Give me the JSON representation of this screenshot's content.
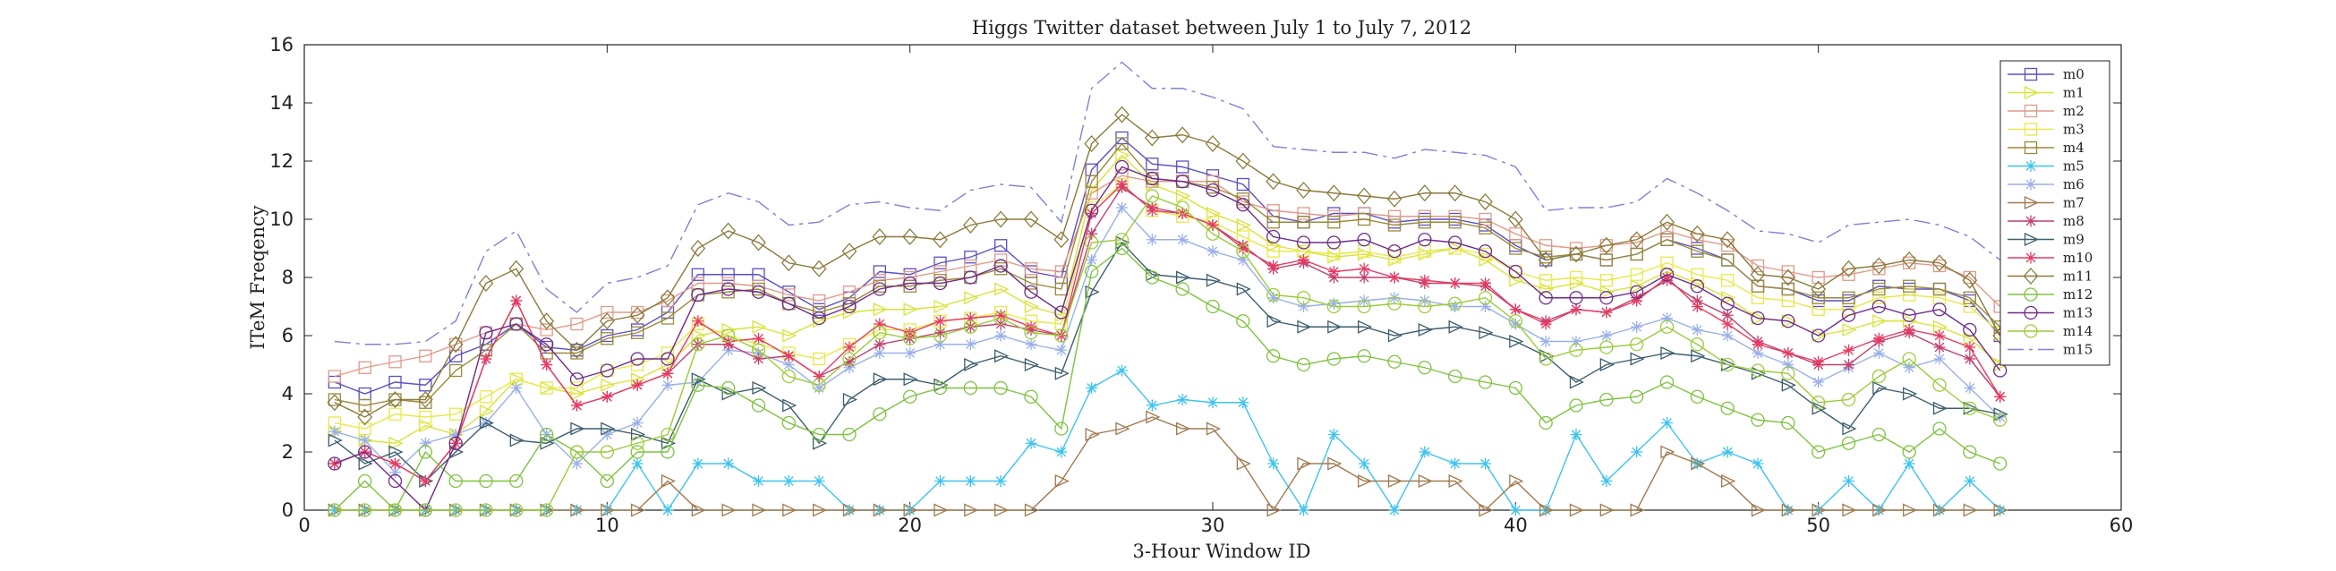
{
  "chart_data": {
    "type": "line",
    "title": "Higgs Twitter dataset between July 1 to July 7, 2012",
    "xlabel": "3-Hour Window ID",
    "ylabel": "ITeM Freqency",
    "xlim": [
      0,
      60
    ],
    "ylim": [
      0,
      16
    ],
    "xticks": [
      0,
      10,
      20,
      30,
      40,
      50,
      60
    ],
    "yticks": [
      0,
      2,
      4,
      6,
      8,
      10,
      12,
      14,
      16
    ],
    "grid": false,
    "legend_position": "top-right",
    "x": [
      1,
      2,
      3,
      4,
      5,
      6,
      7,
      8,
      9,
      10,
      11,
      12,
      13,
      14,
      15,
      16,
      17,
      18,
      19,
      20,
      21,
      22,
      23,
      24,
      25,
      26,
      27,
      28,
      29,
      30,
      31,
      32,
      33,
      34,
      35,
      36,
      37,
      38,
      39,
      40,
      41,
      42,
      43,
      44,
      45,
      46,
      47,
      48,
      49,
      50,
      51,
      52,
      53,
      54,
      55,
      56
    ],
    "series": [
      {
        "name": "m0",
        "color": "#5b4fc4",
        "marker": "square",
        "dash": "",
        "values": [
          4.4,
          4.0,
          4.4,
          4.3,
          5.3,
          5.7,
          6.4,
          5.6,
          5.5,
          6.0,
          6.2,
          6.8,
          8.1,
          8.1,
          8.1,
          7.5,
          6.9,
          7.3,
          8.2,
          8.1,
          8.5,
          8.7,
          9.1,
          8.2,
          8.0,
          11.7,
          12.8,
          11.9,
          11.8,
          11.5,
          11.2,
          10.1,
          9.9,
          10.2,
          10.2,
          9.9,
          10.0,
          10.0,
          9.8,
          9.1,
          8.6,
          8.8,
          8.6,
          8.8,
          9.3,
          9.0,
          8.6,
          7.7,
          7.6,
          7.2,
          7.2,
          7.7,
          7.6,
          7.6,
          7.2,
          6.0
        ]
      },
      {
        "name": "m1",
        "color": "#d8e33a",
        "marker": "triangle-right",
        "dash": "",
        "values": [
          2.7,
          2.4,
          2.3,
          2.9,
          2.6,
          3.4,
          4.5,
          4.2,
          4.0,
          4.3,
          4.5,
          5.0,
          6.0,
          6.2,
          6.3,
          6.0,
          6.5,
          6.8,
          6.9,
          6.9,
          7.0,
          7.3,
          7.6,
          7.0,
          6.7,
          11.0,
          12.2,
          11.2,
          10.8,
          10.2,
          9.8,
          9.1,
          8.9,
          8.7,
          8.8,
          8.6,
          8.8,
          9.0,
          8.6,
          7.9,
          7.6,
          7.8,
          7.5,
          7.7,
          8.2,
          7.8,
          7.3,
          6.6,
          6.5,
          6.0,
          6.2,
          6.5,
          6.5,
          6.3,
          5.9,
          5.0
        ]
      },
      {
        "name": "m2",
        "color": "#e09a8a",
        "marker": "square",
        "dash": "",
        "values": [
          4.6,
          4.9,
          5.1,
          5.3,
          5.7,
          6.1,
          6.4,
          6.2,
          6.4,
          6.8,
          6.8,
          7.2,
          7.8,
          7.8,
          7.7,
          7.4,
          7.2,
          7.5,
          7.9,
          8.0,
          8.2,
          8.4,
          8.6,
          8.3,
          8.2,
          10.9,
          11.5,
          11.3,
          11.3,
          11.3,
          10.6,
          10.3,
          10.2,
          10.1,
          10.2,
          10.1,
          10.1,
          10.1,
          10.0,
          9.5,
          9.1,
          9.0,
          9.1,
          9.2,
          9.6,
          9.3,
          9.1,
          8.4,
          8.2,
          8.0,
          8.1,
          8.3,
          8.5,
          8.4,
          8.0,
          7.0
        ]
      },
      {
        "name": "m3",
        "color": "#e8e84a",
        "marker": "square",
        "dash": "",
        "values": [
          3.0,
          2.8,
          3.3,
          3.2,
          3.3,
          3.9,
          4.5,
          4.2,
          4.2,
          4.8,
          5.0,
          5.4,
          6.4,
          6.0,
          5.7,
          5.4,
          5.2,
          5.7,
          6.2,
          6.2,
          6.5,
          6.6,
          6.8,
          6.5,
          6.4,
          10.4,
          11.2,
          10.3,
          10.1,
          9.9,
          9.4,
          8.9,
          8.9,
          8.8,
          8.9,
          8.7,
          8.9,
          9.0,
          8.8,
          8.2,
          7.9,
          8.0,
          7.9,
          8.1,
          8.5,
          8.1,
          7.9,
          7.3,
          7.2,
          6.9,
          6.9,
          7.3,
          7.4,
          7.3,
          7.0,
          6.1
        ]
      },
      {
        "name": "m4",
        "color": "#9a8a3a",
        "marker": "square",
        "dash": "",
        "values": [
          3.8,
          3.6,
          3.8,
          3.7,
          4.8,
          5.5,
          6.4,
          5.4,
          5.4,
          5.9,
          6.1,
          6.6,
          7.4,
          7.5,
          7.6,
          7.1,
          6.8,
          7.1,
          7.7,
          7.7,
          7.9,
          8.0,
          8.3,
          7.8,
          7.6,
          11.3,
          12.6,
          11.4,
          11.3,
          11.1,
          10.7,
          9.9,
          9.9,
          9.9,
          10.0,
          9.8,
          9.9,
          9.9,
          9.7,
          9.0,
          8.7,
          8.8,
          8.6,
          8.8,
          9.3,
          8.9,
          8.6,
          7.7,
          7.6,
          7.3,
          7.3,
          7.6,
          7.7,
          7.6,
          7.3,
          6.3
        ]
      },
      {
        "name": "m5",
        "color": "#3ec3f0",
        "marker": "star",
        "dash": "",
        "values": [
          0,
          0,
          0,
          0,
          0,
          0,
          0,
          0,
          0,
          0,
          1.6,
          0,
          1.6,
          1.6,
          1.0,
          1.0,
          1.0,
          0,
          0,
          0,
          1.0,
          1.0,
          1.0,
          2.3,
          2.0,
          4.2,
          4.8,
          3.6,
          3.8,
          3.7,
          3.7,
          1.6,
          0,
          2.6,
          1.6,
          0,
          2.0,
          1.6,
          1.6,
          0,
          0,
          2.6,
          1.0,
          2.0,
          3.0,
          1.6,
          2.0,
          1.6,
          0,
          0,
          1.0,
          0,
          1.6,
          0,
          1.0,
          0
        ]
      },
      {
        "name": "m6",
        "color": "#9ab0e8",
        "marker": "star",
        "dash": "",
        "values": [
          2.7,
          2.4,
          1.3,
          2.3,
          2.6,
          3.0,
          4.2,
          2.6,
          1.6,
          2.6,
          3.0,
          4.3,
          4.4,
          5.5,
          5.4,
          5.0,
          4.2,
          4.9,
          5.4,
          5.4,
          5.7,
          5.7,
          6.0,
          5.7,
          5.5,
          8.6,
          10.4,
          9.3,
          9.3,
          8.9,
          8.6,
          7.3,
          7.0,
          7.1,
          7.2,
          7.3,
          7.2,
          7.0,
          7.0,
          6.4,
          5.8,
          5.8,
          6.0,
          6.3,
          6.6,
          6.2,
          6.0,
          5.4,
          5.0,
          4.4,
          4.9,
          5.4,
          4.9,
          5.2,
          4.2,
          3.2
        ]
      },
      {
        "name": "m7",
        "color": "#a07a50",
        "marker": "triangle-right",
        "dash": "",
        "values": [
          0,
          0,
          0,
          0,
          0,
          0,
          0,
          0,
          0,
          0,
          0,
          1.0,
          0,
          0,
          0,
          0,
          0,
          0,
          0,
          0,
          0,
          0,
          0,
          0,
          1.0,
          2.6,
          2.8,
          3.2,
          2.8,
          2.8,
          1.6,
          0,
          1.6,
          1.6,
          1.0,
          1.0,
          1.0,
          1.0,
          0,
          1.0,
          0,
          0,
          0,
          0,
          2.0,
          1.6,
          1.0,
          0,
          0,
          0,
          0,
          0,
          0,
          0,
          0,
          0
        ]
      },
      {
        "name": "m8",
        "color": "#c04070",
        "marker": "star",
        "dash": "",
        "values": [
          1.6,
          2.0,
          1.6,
          1.0,
          2.3,
          5.2,
          7.2,
          5.0,
          3.6,
          3.9,
          4.3,
          4.7,
          5.7,
          5.7,
          5.2,
          5.3,
          4.6,
          5.1,
          5.7,
          5.9,
          6.1,
          6.3,
          6.4,
          6.2,
          6.0,
          9.5,
          11.1,
          10.4,
          10.2,
          9.8,
          9.1,
          8.3,
          8.5,
          8.0,
          8.0,
          8.0,
          7.8,
          7.8,
          7.7,
          6.9,
          6.5,
          6.9,
          6.8,
          7.3,
          7.9,
          7.2,
          6.7,
          5.8,
          5.4,
          5.0,
          5.0,
          5.8,
          6.1,
          5.6,
          5.2,
          3.9
        ]
      },
      {
        "name": "m9",
        "color": "#3e5e6e",
        "marker": "triangle-right",
        "dash": "",
        "values": [
          2.4,
          1.6,
          2.0,
          1.0,
          2.0,
          3.0,
          2.4,
          2.3,
          2.8,
          2.8,
          2.6,
          2.3,
          4.5,
          4.0,
          4.2,
          3.6,
          2.3,
          3.8,
          4.5,
          4.5,
          4.3,
          5.0,
          5.3,
          5.0,
          4.7,
          7.5,
          9.2,
          8.1,
          8.0,
          7.9,
          7.6,
          6.5,
          6.3,
          6.3,
          6.3,
          6.0,
          6.2,
          6.3,
          6.1,
          5.8,
          5.3,
          4.4,
          5.0,
          5.2,
          5.4,
          5.3,
          5.0,
          4.7,
          4.3,
          3.5,
          2.8,
          4.2,
          4.0,
          3.5,
          3.5,
          3.3
        ]
      },
      {
        "name": "m10",
        "color": "#e63c62",
        "marker": "star",
        "dash": "",
        "values": [
          1.6,
          2.0,
          1.6,
          1.0,
          2.3,
          5.2,
          7.2,
          5.0,
          3.6,
          3.9,
          4.3,
          4.7,
          6.5,
          5.8,
          5.9,
          5.3,
          4.6,
          5.6,
          6.4,
          6.1,
          6.5,
          6.6,
          6.7,
          6.3,
          6.0,
          10.2,
          11.2,
          10.3,
          10.2,
          9.8,
          9.0,
          8.4,
          8.6,
          8.2,
          8.3,
          8.0,
          7.9,
          7.8,
          7.8,
          6.9,
          6.4,
          6.9,
          6.8,
          7.2,
          8.0,
          7.0,
          6.4,
          5.7,
          5.4,
          5.1,
          5.5,
          5.9,
          6.2,
          6.0,
          5.6,
          3.9
        ]
      },
      {
        "name": "m11",
        "color": "#8a7a3a",
        "marker": "diamond",
        "dash": "",
        "values": [
          3.7,
          3.2,
          3.8,
          3.8,
          5.7,
          7.8,
          8.3,
          6.5,
          5.5,
          6.5,
          6.7,
          7.3,
          9.0,
          9.6,
          9.2,
          8.5,
          8.3,
          8.9,
          9.4,
          9.4,
          9.3,
          9.8,
          10.0,
          10.0,
          9.3,
          12.6,
          13.6,
          12.8,
          12.9,
          12.6,
          12.0,
          11.3,
          11.0,
          10.9,
          10.8,
          10.7,
          10.9,
          10.9,
          10.6,
          10.0,
          8.6,
          8.8,
          9.1,
          9.3,
          9.9,
          9.5,
          9.3,
          8.1,
          8.0,
          7.6,
          8.3,
          8.4,
          8.6,
          8.5,
          7.9,
          6.0
        ]
      },
      {
        "name": "m12",
        "color": "#7ec23e",
        "marker": "circle",
        "dash": "",
        "values": [
          0,
          1.0,
          0,
          2.0,
          1.0,
          1.0,
          1.0,
          2.6,
          2.0,
          1.0,
          2.0,
          2.0,
          4.3,
          4.2,
          3.6,
          3.0,
          2.6,
          2.6,
          3.3,
          3.9,
          4.2,
          4.2,
          4.2,
          3.9,
          2.8,
          8.2,
          9.0,
          8.0,
          7.6,
          7.0,
          6.5,
          5.3,
          5.0,
          5.2,
          5.3,
          5.1,
          4.9,
          4.6,
          4.4,
          4.2,
          3.0,
          3.6,
          3.8,
          3.9,
          4.4,
          3.9,
          3.5,
          3.1,
          3.0,
          2.0,
          2.3,
          2.6,
          2.0,
          2.8,
          2.0,
          1.6
        ]
      },
      {
        "name": "m13",
        "color": "#6e2a8e",
        "marker": "circle",
        "dash": "",
        "values": [
          1.6,
          2.0,
          1.0,
          0,
          2.3,
          6.1,
          6.4,
          5.7,
          4.5,
          4.8,
          5.2,
          5.2,
          7.4,
          7.6,
          7.5,
          7.1,
          6.6,
          7.0,
          7.6,
          7.8,
          7.8,
          8.0,
          8.4,
          7.5,
          6.8,
          10.3,
          11.8,
          11.4,
          11.3,
          11.0,
          10.5,
          9.4,
          9.2,
          9.2,
          9.3,
          8.9,
          9.3,
          9.2,
          8.9,
          8.2,
          7.3,
          7.3,
          7.3,
          7.5,
          8.1,
          7.7,
          7.1,
          6.6,
          6.5,
          6.0,
          6.7,
          7.0,
          6.7,
          6.9,
          6.2,
          4.8
        ]
      },
      {
        "name": "m14",
        "color": "#9acc3a",
        "marker": "circle",
        "dash": "",
        "values": [
          0,
          0,
          0,
          0,
          0,
          0,
          0,
          0,
          2.0,
          2.0,
          2.3,
          2.6,
          5.7,
          6.0,
          5.5,
          4.6,
          4.3,
          5.2,
          6.1,
          5.9,
          6.0,
          6.3,
          6.6,
          6.1,
          6.0,
          9.2,
          9.3,
          10.8,
          10.4,
          9.5,
          8.9,
          7.4,
          7.3,
          7.0,
          7.0,
          7.1,
          7.0,
          7.1,
          7.3,
          6.5,
          5.2,
          5.5,
          5.6,
          5.7,
          6.3,
          5.7,
          5.0,
          4.8,
          4.7,
          3.7,
          3.8,
          4.6,
          5.2,
          4.3,
          3.5,
          3.1
        ]
      },
      {
        "name": "m15",
        "color": "#8080d8",
        "marker": "none",
        "dash": "18,6,4,6",
        "values": [
          5.8,
          5.7,
          5.7,
          5.8,
          6.5,
          8.9,
          9.6,
          7.6,
          6.8,
          7.8,
          8.0,
          8.4,
          10.5,
          10.9,
          10.6,
          9.8,
          9.9,
          10.5,
          10.6,
          10.4,
          10.3,
          11.0,
          11.2,
          11.1,
          9.9,
          14.5,
          15.4,
          14.5,
          14.5,
          14.2,
          13.8,
          12.5,
          12.4,
          12.3,
          12.3,
          12.1,
          12.4,
          12.3,
          12.2,
          11.8,
          10.3,
          10.4,
          10.4,
          10.6,
          11.4,
          10.9,
          10.3,
          9.6,
          9.5,
          9.2,
          9.8,
          9.9,
          10.0,
          9.8,
          9.4,
          8.6
        ]
      }
    ]
  }
}
